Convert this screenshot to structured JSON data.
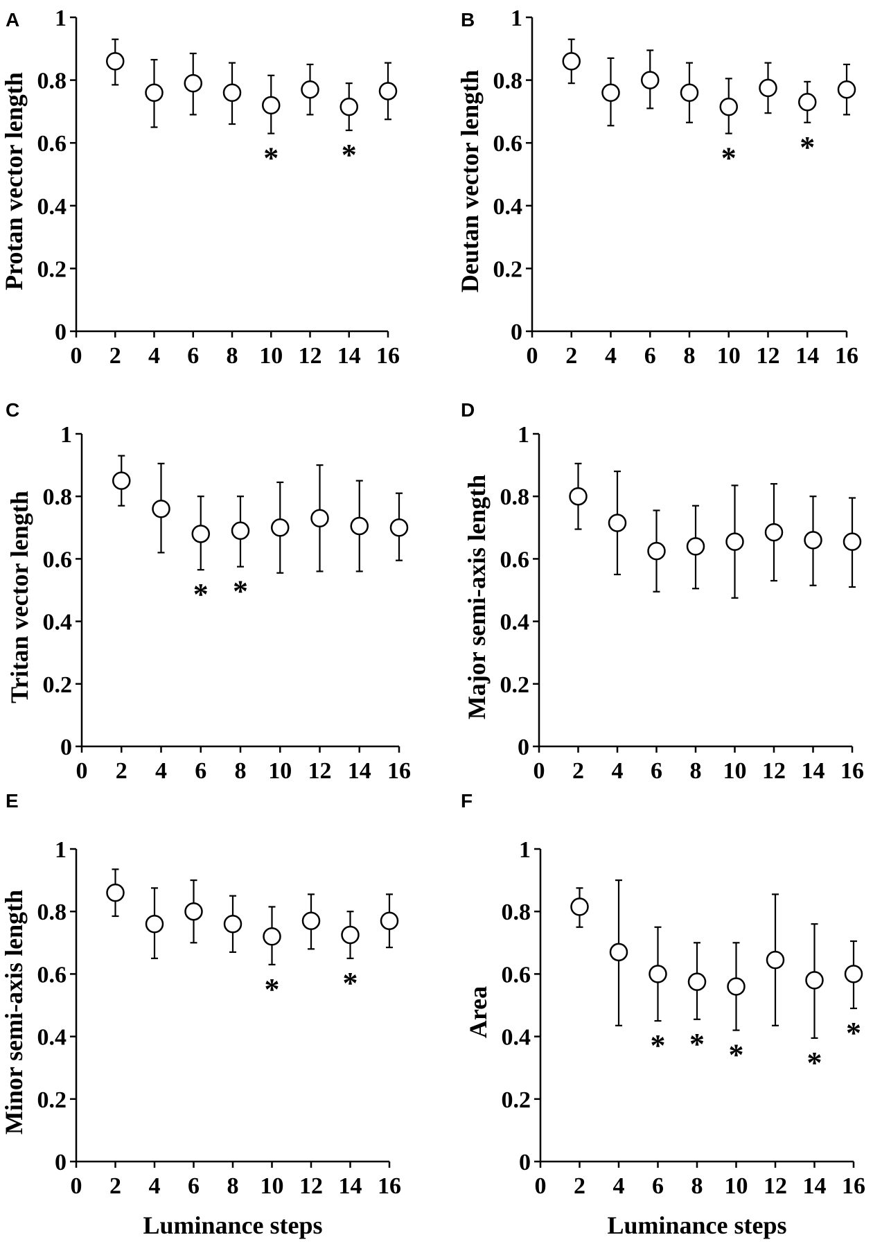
{
  "chart_data": [
    {
      "panel": "A",
      "type": "scatter",
      "ylabel": "Protan vector length",
      "xlabel": "",
      "xlim": [
        0,
        16
      ],
      "ylim": [
        0,
        1
      ],
      "xticks": [
        "0",
        "2",
        "4",
        "6",
        "8",
        "10",
        "12",
        "14",
        "16"
      ],
      "yticks": [
        "0",
        "0.2",
        "0.4",
        "0.6",
        "0.8",
        "1"
      ],
      "x": [
        2,
        4,
        6,
        8,
        10,
        12,
        14,
        16
      ],
      "y": [
        0.86,
        0.76,
        0.79,
        0.76,
        0.72,
        0.77,
        0.715,
        0.765
      ],
      "err_low": [
        0.785,
        0.65,
        0.69,
        0.66,
        0.63,
        0.69,
        0.64,
        0.675
      ],
      "err_high": [
        0.93,
        0.865,
        0.885,
        0.855,
        0.815,
        0.85,
        0.79,
        0.855
      ],
      "significant": [
        10,
        14
      ],
      "marker_label": "*"
    },
    {
      "panel": "B",
      "type": "scatter",
      "ylabel": "Deutan vector length",
      "xlabel": "",
      "xlim": [
        0,
        16
      ],
      "ylim": [
        0,
        1
      ],
      "xticks": [
        "0",
        "2",
        "4",
        "6",
        "8",
        "10",
        "12",
        "14",
        "16"
      ],
      "yticks": [
        "0",
        "0.2",
        "0.4",
        "0.6",
        "0.8",
        "1"
      ],
      "x": [
        2,
        4,
        6,
        8,
        10,
        12,
        14,
        16
      ],
      "y": [
        0.86,
        0.76,
        0.8,
        0.76,
        0.715,
        0.775,
        0.73,
        0.77
      ],
      "err_low": [
        0.79,
        0.655,
        0.71,
        0.665,
        0.63,
        0.695,
        0.665,
        0.69
      ],
      "err_high": [
        0.93,
        0.87,
        0.895,
        0.855,
        0.805,
        0.855,
        0.795,
        0.85
      ],
      "significant": [
        10,
        14
      ],
      "marker_label": "*"
    },
    {
      "panel": "C",
      "type": "scatter",
      "ylabel": "Tritan vector length",
      "xlabel": "",
      "xlim": [
        0,
        16
      ],
      "ylim": [
        0,
        1
      ],
      "xticks": [
        "0",
        "2",
        "4",
        "6",
        "8",
        "10",
        "12",
        "14",
        "16"
      ],
      "yticks": [
        "0",
        "0.2",
        "0.4",
        "0.6",
        "0.8",
        "1"
      ],
      "x": [
        2,
        4,
        6,
        8,
        10,
        12,
        14,
        16
      ],
      "y": [
        0.85,
        0.76,
        0.68,
        0.69,
        0.7,
        0.73,
        0.705,
        0.7
      ],
      "err_low": [
        0.77,
        0.62,
        0.565,
        0.575,
        0.555,
        0.56,
        0.56,
        0.595
      ],
      "err_high": [
        0.93,
        0.905,
        0.8,
        0.8,
        0.845,
        0.9,
        0.85,
        0.81
      ],
      "significant": [
        6,
        8
      ],
      "marker_label": "*"
    },
    {
      "panel": "D",
      "type": "scatter",
      "ylabel": "Major semi-axis length",
      "xlabel": "",
      "xlim": [
        0,
        16
      ],
      "ylim": [
        0,
        1
      ],
      "xticks": [
        "0",
        "2",
        "4",
        "6",
        "8",
        "10",
        "12",
        "14",
        "16"
      ],
      "yticks": [
        "0",
        "0.2",
        "0.4",
        "0.6",
        "0.8",
        "1"
      ],
      "x": [
        2,
        4,
        6,
        8,
        10,
        12,
        14,
        16
      ],
      "y": [
        0.8,
        0.715,
        0.625,
        0.64,
        0.655,
        0.685,
        0.66,
        0.655
      ],
      "err_low": [
        0.695,
        0.55,
        0.495,
        0.505,
        0.475,
        0.53,
        0.515,
        0.51
      ],
      "err_high": [
        0.905,
        0.88,
        0.755,
        0.77,
        0.835,
        0.84,
        0.8,
        0.795
      ],
      "significant": [],
      "marker_label": "*"
    },
    {
      "panel": "E",
      "type": "scatter",
      "ylabel": "Minor semi-axis length",
      "xlabel": "Luminance steps",
      "xlim": [
        0,
        16
      ],
      "ylim": [
        0,
        1
      ],
      "xticks": [
        "0",
        "2",
        "4",
        "6",
        "8",
        "10",
        "12",
        "14",
        "16"
      ],
      "yticks": [
        "0",
        "0.2",
        "0.4",
        "0.6",
        "0.8",
        "1"
      ],
      "x": [
        2,
        4,
        6,
        8,
        10,
        12,
        14,
        16
      ],
      "y": [
        0.86,
        0.76,
        0.8,
        0.76,
        0.72,
        0.77,
        0.725,
        0.77
      ],
      "err_low": [
        0.785,
        0.65,
        0.7,
        0.67,
        0.63,
        0.68,
        0.65,
        0.685
      ],
      "err_high": [
        0.935,
        0.875,
        0.9,
        0.85,
        0.815,
        0.855,
        0.8,
        0.855
      ],
      "significant": [
        10,
        14
      ],
      "marker_label": "*"
    },
    {
      "panel": "F",
      "type": "scatter",
      "ylabel": "Area",
      "xlabel": "Luminance steps",
      "xlim": [
        0,
        16
      ],
      "ylim": [
        0,
        1
      ],
      "xticks": [
        "0",
        "2",
        "4",
        "6",
        "8",
        "10",
        "12",
        "14",
        "16"
      ],
      "yticks": [
        "0",
        "0.2",
        "0.4",
        "0.6",
        "0.8",
        "1"
      ],
      "x": [
        2,
        4,
        6,
        8,
        10,
        12,
        14,
        16
      ],
      "y": [
        0.815,
        0.67,
        0.6,
        0.575,
        0.56,
        0.645,
        0.58,
        0.6
      ],
      "err_low": [
        0.75,
        0.435,
        0.45,
        0.455,
        0.42,
        0.435,
        0.395,
        0.49
      ],
      "err_high": [
        0.875,
        0.9,
        0.75,
        0.7,
        0.7,
        0.855,
        0.76,
        0.705
      ],
      "significant": [
        6,
        8,
        10,
        14,
        16
      ],
      "marker_label": "*"
    }
  ]
}
